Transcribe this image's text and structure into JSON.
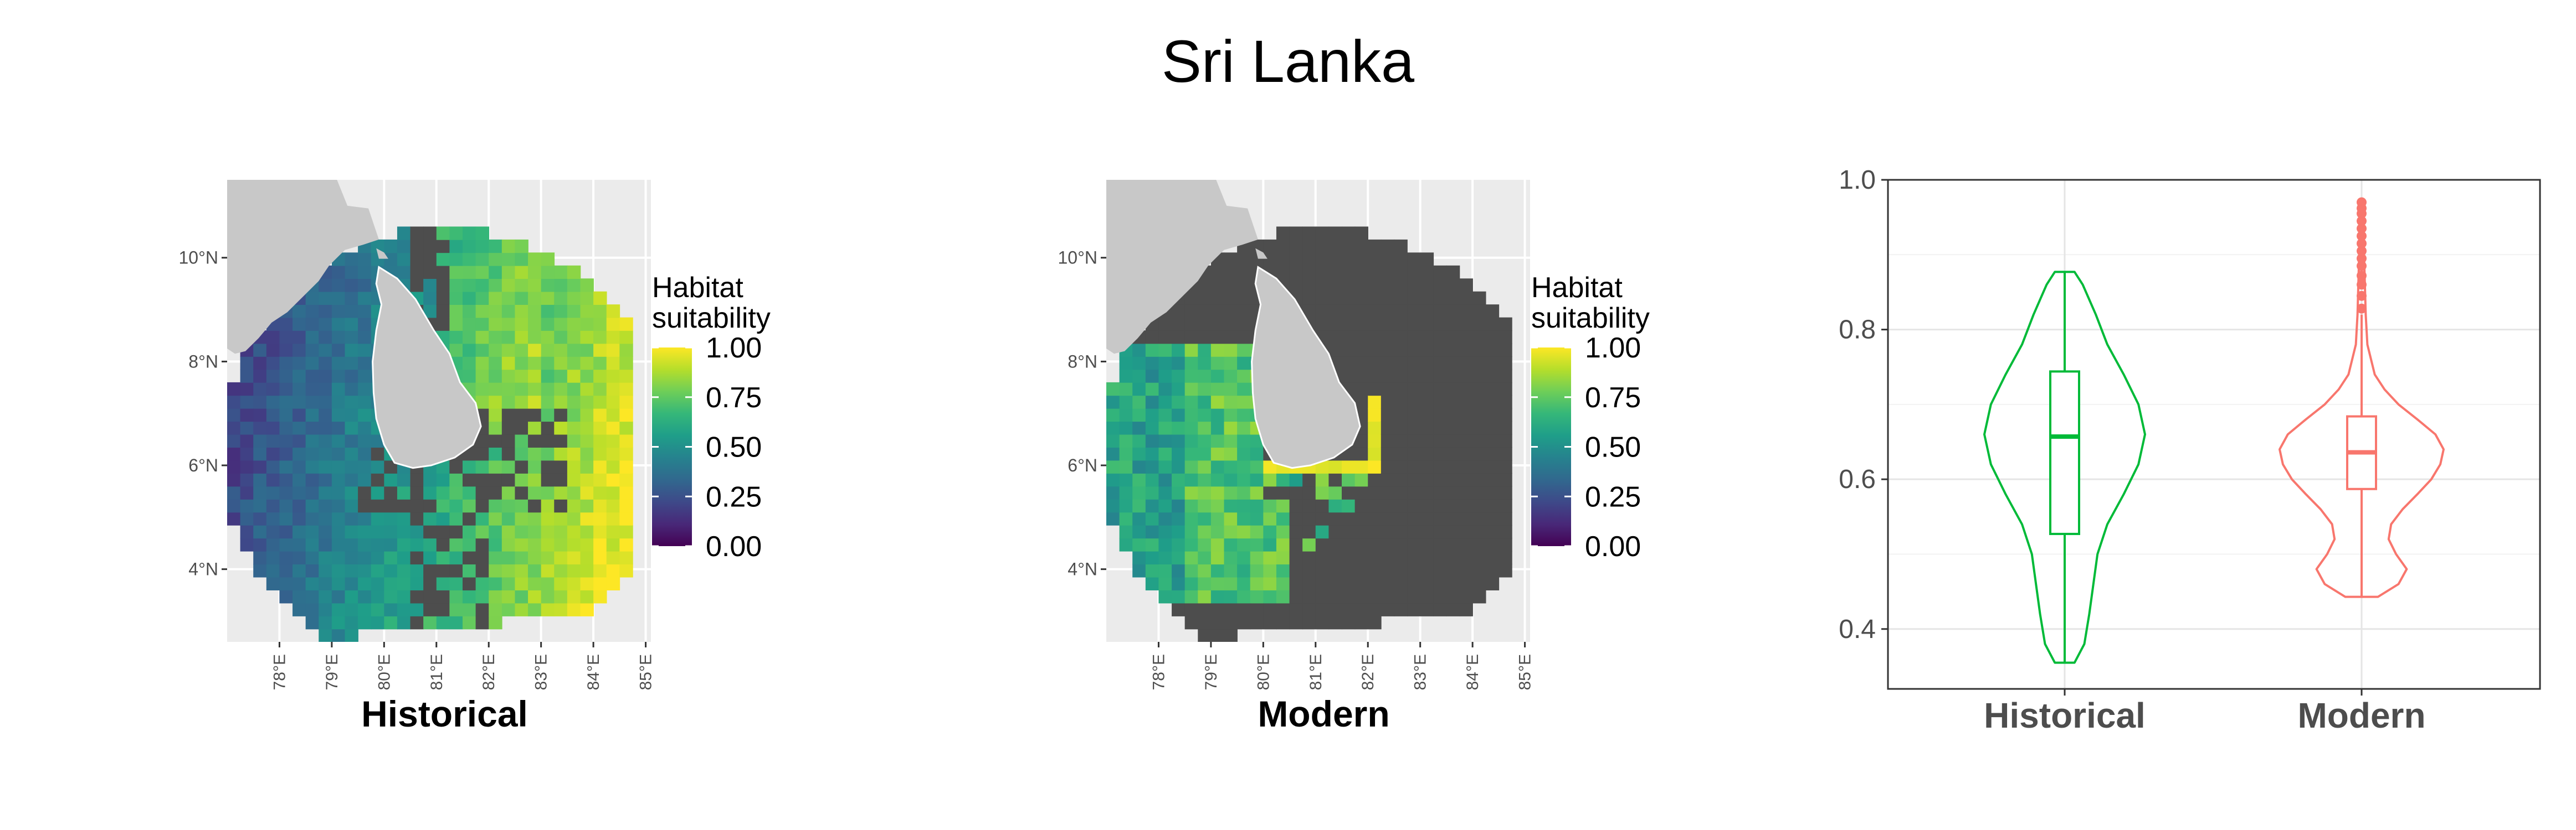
{
  "figure": {
    "title": "Sri Lanka"
  },
  "chart_data": [
    {
      "type": "heatmap",
      "panel_label": "Historical",
      "x_ticks": [
        "78°E",
        "79°E",
        "80°E",
        "81°E",
        "82°E",
        "83°E",
        "84°E",
        "85°E"
      ],
      "y_ticks": [
        "4°N",
        "6°N",
        "8°N",
        "10°N"
      ],
      "xlim": [
        77.0,
        85.1
      ],
      "ylim": [
        2.6,
        11.5
      ],
      "legend": {
        "title": "Habitat suitability",
        "ticks": [
          "1.00",
          "0.75",
          "0.50",
          "0.25",
          "0.00"
        ],
        "range": [
          0,
          1
        ],
        "colormap": "viridis"
      },
      "no_data_color": "#4d4d4d",
      "land_color": "#c8c8c8",
      "panel_background": "#ebebeb"
    },
    {
      "type": "heatmap",
      "panel_label": "Modern",
      "x_ticks": [
        "78°E",
        "79°E",
        "80°E",
        "81°E",
        "82°E",
        "83°E",
        "84°E",
        "85°E"
      ],
      "y_ticks": [
        "4°N",
        "6°N",
        "8°N",
        "10°N"
      ],
      "xlim": [
        77.0,
        85.1
      ],
      "ylim": [
        2.6,
        11.5
      ],
      "legend": {
        "title": "Habitat suitability",
        "ticks": [
          "1.00",
          "0.75",
          "0.50",
          "0.25",
          "0.00"
        ],
        "range": [
          0,
          1
        ],
        "colormap": "viridis"
      },
      "no_data_color": "#4d4d4d",
      "land_color": "#c8c8c8",
      "panel_background": "#ebebeb"
    },
    {
      "type": "violin",
      "categories": [
        "Historical",
        "Modern"
      ],
      "ylim": [
        0.32,
        1.0
      ],
      "y_ticks": [
        "0.4",
        "0.6",
        "0.8",
        "1.0"
      ],
      "grid": true,
      "series": [
        {
          "name": "Historical",
          "color": "#00ba38",
          "violin": {
            "y": [
              0.355,
              0.38,
              0.42,
              0.46,
              0.5,
              0.54,
              0.58,
              0.62,
              0.66,
              0.7,
              0.74,
              0.78,
              0.82,
              0.86,
              0.877
            ],
            "half_width": [
              0.12,
              0.24,
              0.3,
              0.35,
              0.4,
              0.52,
              0.72,
              0.9,
              0.98,
              0.9,
              0.72,
              0.52,
              0.38,
              0.22,
              0.12
            ]
          },
          "box": {
            "q1": 0.527,
            "median": 0.657,
            "q3": 0.744,
            "whisker_low": 0.355,
            "whisker_high": 0.877
          },
          "outliers": []
        },
        {
          "name": "Modern",
          "color": "#f8766d",
          "violin": {
            "y": [
              0.443,
              0.46,
              0.48,
              0.5,
              0.52,
              0.54,
              0.56,
              0.58,
              0.6,
              0.62,
              0.64,
              0.66,
              0.68,
              0.7,
              0.72,
              0.74,
              0.78,
              0.82,
              0.86,
              0.9,
              0.94,
              0.97
            ],
            "half_width": [
              0.2,
              0.45,
              0.55,
              0.42,
              0.33,
              0.36,
              0.5,
              0.68,
              0.85,
              0.96,
              1.0,
              0.9,
              0.68,
              0.45,
              0.28,
              0.16,
              0.07,
              0.05,
              0.04,
              0.03,
              0.02,
              0.015
            ]
          },
          "box": {
            "q1": 0.587,
            "median": 0.636,
            "q3": 0.684,
            "whisker_low": 0.443,
            "whisker_high": 0.82
          },
          "outliers": [
            0.828,
            0.845,
            0.86,
            0.872,
            0.885,
            0.895,
            0.905,
            0.915,
            0.925,
            0.935,
            0.945,
            0.955,
            0.962,
            0.97
          ]
        }
      ]
    }
  ]
}
